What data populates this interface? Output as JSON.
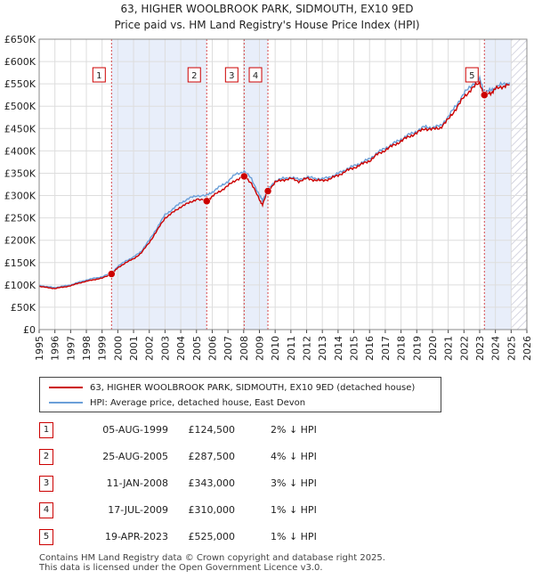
{
  "title": "63, HIGHER WOOLBROOK PARK, SIDMOUTH, EX10 9ED",
  "subtitle": "Price paid vs. HM Land Registry's House Price Index (HPI)",
  "chart_data": {
    "type": "line",
    "xlim": [
      1995,
      2026
    ],
    "ylim": [
      0,
      650000
    ],
    "x_ticks": [
      "1995",
      "1996",
      "1997",
      "1998",
      "1999",
      "2000",
      "2001",
      "2002",
      "2003",
      "2004",
      "2005",
      "2006",
      "2007",
      "2008",
      "2009",
      "2010",
      "2011",
      "2012",
      "2013",
      "2014",
      "2015",
      "2016",
      "2017",
      "2018",
      "2019",
      "2020",
      "2021",
      "2022",
      "2023",
      "2024",
      "2025",
      "2026"
    ],
    "y_ticks": [
      {
        "value": 0,
        "label": "£0"
      },
      {
        "value": 50000,
        "label": "£50K"
      },
      {
        "value": 100000,
        "label": "£100K"
      },
      {
        "value": 150000,
        "label": "£150K"
      },
      {
        "value": 200000,
        "label": "£200K"
      },
      {
        "value": 250000,
        "label": "£250K"
      },
      {
        "value": 300000,
        "label": "£300K"
      },
      {
        "value": 350000,
        "label": "£350K"
      },
      {
        "value": 400000,
        "label": "£400K"
      },
      {
        "value": 450000,
        "label": "£450K"
      },
      {
        "value": 500000,
        "label": "£500K"
      },
      {
        "value": 550000,
        "label": "£550K"
      },
      {
        "value": 600000,
        "label": "£600K"
      },
      {
        "value": 650000,
        "label": "£650K"
      }
    ],
    "grid": true,
    "shaded_ranges": [
      [
        1999.6,
        2005.65
      ],
      [
        2008.03,
        2009.54
      ],
      [
        2023.3,
        2025.0
      ]
    ],
    "hatched_from": 2025.0,
    "series": [
      {
        "name": "63, HIGHER WOOLBROOK PARK, SIDMOUTH, EX10 9ED (detached house)",
        "color": "#cc0000",
        "x": [
          1995.0,
          1995.5,
          1996.0,
          1996.5,
          1997.0,
          1997.5,
          1998.0,
          1998.5,
          1999.0,
          1999.6,
          2000.0,
          2000.5,
          2001.0,
          2001.5,
          2002.0,
          2002.5,
          2003.0,
          2003.5,
          2004.0,
          2004.5,
          2005.0,
          2005.65,
          2006.0,
          2006.5,
          2007.0,
          2007.5,
          2008.03,
          2008.5,
          2009.0,
          2009.2,
          2009.54,
          2010.0,
          2010.5,
          2011.0,
          2011.5,
          2012.0,
          2012.5,
          2013.0,
          2013.5,
          2014.0,
          2014.5,
          2015.0,
          2015.5,
          2016.0,
          2016.5,
          2017.0,
          2017.5,
          2018.0,
          2018.5,
          2019.0,
          2019.5,
          2020.0,
          2020.5,
          2021.0,
          2021.5,
          2022.0,
          2022.5,
          2023.0,
          2023.3,
          2023.7,
          2024.0,
          2024.5,
          2024.9
        ],
        "values": [
          97000,
          94000,
          92000,
          95000,
          98000,
          104000,
          108000,
          112000,
          115000,
          124500,
          138000,
          150000,
          158000,
          172000,
          195000,
          222000,
          250000,
          262000,
          275000,
          283000,
          292000,
          287500,
          298000,
          310000,
          322000,
          335000,
          343000,
          328000,
          290000,
          280000,
          310000,
          330000,
          335000,
          338000,
          332000,
          338000,
          335000,
          333000,
          338000,
          345000,
          355000,
          362000,
          370000,
          378000,
          392000,
          402000,
          412000,
          422000,
          432000,
          440000,
          450000,
          448000,
          452000,
          470000,
          495000,
          520000,
          540000,
          552000,
          525000,
          530000,
          538000,
          545000,
          548000
        ]
      },
      {
        "name": "HPI: Average price, detached house, East Devon",
        "color": "#6a9fd8",
        "x": [
          1995.0,
          1995.5,
          1996.0,
          1996.5,
          1997.0,
          1997.5,
          1998.0,
          1998.5,
          1999.0,
          1999.6,
          2000.0,
          2000.5,
          2001.0,
          2001.5,
          2002.0,
          2002.5,
          2003.0,
          2003.5,
          2004.0,
          2004.5,
          2005.0,
          2005.65,
          2006.0,
          2006.5,
          2007.0,
          2007.5,
          2008.03,
          2008.5,
          2009.0,
          2009.2,
          2009.54,
          2010.0,
          2010.5,
          2011.0,
          2011.5,
          2012.0,
          2012.5,
          2013.0,
          2013.5,
          2014.0,
          2014.5,
          2015.0,
          2015.5,
          2016.0,
          2016.5,
          2017.0,
          2017.5,
          2018.0,
          2018.5,
          2019.0,
          2019.5,
          2020.0,
          2020.5,
          2021.0,
          2021.5,
          2022.0,
          2022.5,
          2023.0,
          2023.3,
          2023.7,
          2024.0,
          2024.5,
          2024.9
        ],
        "values": [
          99000,
          96000,
          94000,
          97000,
          100000,
          106000,
          111000,
          115000,
          118000,
          127000,
          141000,
          154000,
          162000,
          176000,
          200000,
          228000,
          257000,
          270000,
          284000,
          293000,
          300000,
          300000,
          308000,
          320000,
          332000,
          348000,
          354000,
          338000,
          300000,
          290000,
          313000,
          333000,
          338000,
          341000,
          336000,
          341000,
          339000,
          337000,
          342000,
          349000,
          359000,
          366000,
          374000,
          382000,
          396000,
          406000,
          416000,
          426000,
          436000,
          444000,
          454000,
          452000,
          456000,
          476000,
          502000,
          528000,
          548000,
          560000,
          532000,
          535000,
          542000,
          550000,
          553000
        ]
      }
    ],
    "markers": [
      {
        "label": "1",
        "x": 1999.6,
        "y": 124500
      },
      {
        "label": "2",
        "x": 2005.65,
        "y": 287500
      },
      {
        "label": "3",
        "x": 2008.03,
        "y": 343000
      },
      {
        "label": "4",
        "x": 2009.54,
        "y": 310000
      },
      {
        "label": "5",
        "x": 2023.3,
        "y": 525000
      }
    ]
  },
  "legend": {
    "items": [
      {
        "label": "63, HIGHER WOOLBROOK PARK, SIDMOUTH, EX10 9ED (detached house)",
        "color": "#cc0000"
      },
      {
        "label": "HPI: Average price, detached house, East Devon",
        "color": "#6a9fd8"
      }
    ]
  },
  "transactions": [
    {
      "num": "1",
      "date": "05-AUG-1999",
      "price": "£124,500",
      "hpi": "2% ↓ HPI"
    },
    {
      "num": "2",
      "date": "25-AUG-2005",
      "price": "£287,500",
      "hpi": "4% ↓ HPI"
    },
    {
      "num": "3",
      "date": "11-JAN-2008",
      "price": "£343,000",
      "hpi": "3% ↓ HPI"
    },
    {
      "num": "4",
      "date": "17-JUL-2009",
      "price": "£310,000",
      "hpi": "1% ↓ HPI"
    },
    {
      "num": "5",
      "date": "19-APR-2023",
      "price": "£525,000",
      "hpi": "1% ↓ HPI"
    }
  ],
  "footer": {
    "line1": "Contains HM Land Registry data © Crown copyright and database right 2025.",
    "line2": "This data is licensed under the Open Government Licence v3.0."
  }
}
